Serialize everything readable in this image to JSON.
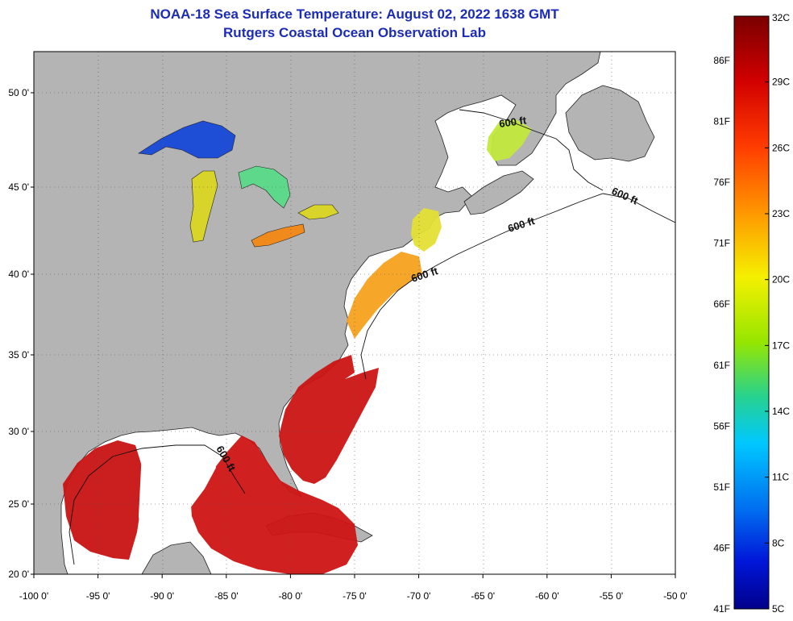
{
  "title": "NOAA-18 Sea Surface Temperature:  August 02, 2022 1638 GMT",
  "subtitle": "Rutgers Coastal Ocean Observation Lab",
  "map": {
    "lon_range": [
      -100,
      -50
    ],
    "lat_range": [
      20,
      52.3
    ],
    "lon_labels": [
      {
        "lon": -100,
        "text": "-100 0'"
      },
      {
        "lon": -95,
        "text": "-95 0'"
      },
      {
        "lon": -90,
        "text": "-90 0'"
      },
      {
        "lon": -85,
        "text": "-85 0'"
      },
      {
        "lon": -80,
        "text": "-80 0'"
      },
      {
        "lon": -75,
        "text": "-75 0'"
      },
      {
        "lon": -70,
        "text": "-70 0'"
      },
      {
        "lon": -65,
        "text": "-65 0'"
      },
      {
        "lon": -60,
        "text": "-60 0'"
      },
      {
        "lon": -55,
        "text": "-55 0'"
      },
      {
        "lon": -50,
        "text": "-50 0'"
      }
    ],
    "lat_labels": [
      {
        "lat": 20,
        "text": "20 0'"
      },
      {
        "lat": 25,
        "text": "25 0'"
      },
      {
        "lat": 30,
        "text": "30 0'"
      },
      {
        "lat": 35,
        "text": "35 0'"
      },
      {
        "lat": 40,
        "text": "40 0'"
      },
      {
        "lat": 45,
        "text": "45 0'"
      },
      {
        "lat": 50,
        "text": "50 0'"
      }
    ],
    "isobath_label": "600 ft",
    "land_color": "#b4b4b4",
    "ocean_color": "#ffffff"
  },
  "colorbar": {
    "celsius": [
      "32C",
      "29C",
      "26C",
      "23C",
      "20C",
      "17C",
      "14C",
      "11C",
      "8C",
      "5C"
    ],
    "fahrenheit": [
      "86F",
      "81F",
      "76F",
      "71F",
      "66F",
      "61F",
      "56F",
      "51F",
      "46F",
      "41F"
    ]
  }
}
